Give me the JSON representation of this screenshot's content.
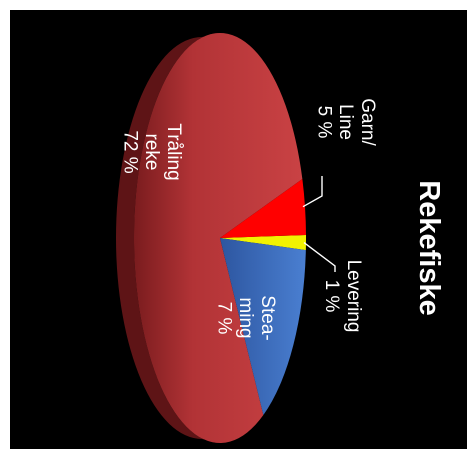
{
  "chart_data": {
    "type": "pie",
    "title": "Rekefiske",
    "slices": [
      {
        "label_lines": [
          "Tråling",
          "reke",
          "72 %"
        ],
        "name": "Tråling reke",
        "value": 72,
        "color": "#c0393b"
      },
      {
        "label_lines": [
          "Stea-",
          "ming",
          "7 %"
        ],
        "name": "Steaming",
        "value": 7,
        "color": "#3f6fbf"
      },
      {
        "label_lines": [
          "Levering",
          "1 %"
        ],
        "name": "Levering",
        "value": 1,
        "color": "#f2f200"
      },
      {
        "label_lines": [
          "Garn/",
          "Line",
          "5 %"
        ],
        "name": "Garn/Line",
        "value": 5,
        "color": "#ff0000"
      }
    ],
    "background": "#000000"
  }
}
